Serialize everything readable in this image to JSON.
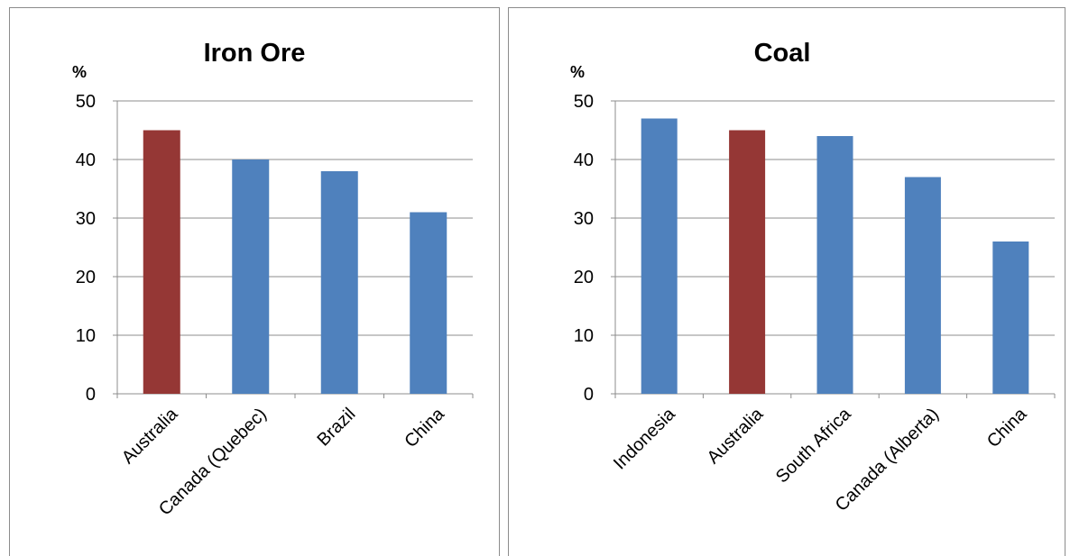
{
  "chart_data": [
    {
      "type": "bar",
      "title": "Iron Ore",
      "ylabel": "%",
      "ylim": [
        0,
        50
      ],
      "yticks": [
        0,
        10,
        20,
        30,
        40,
        50
      ],
      "grid": true,
      "categories": [
        "Australia",
        "Canada (Quebec)",
        "Brazil",
        "China"
      ],
      "values": [
        45,
        40,
        38,
        31
      ],
      "colors": [
        "#953735",
        "#4f81bd",
        "#4f81bd",
        "#4f81bd"
      ]
    },
    {
      "type": "bar",
      "title": "Coal",
      "ylabel": "%",
      "ylim": [
        0,
        50
      ],
      "yticks": [
        0,
        10,
        20,
        30,
        40,
        50
      ],
      "grid": true,
      "categories": [
        "Indonesia",
        "Australia",
        "South Africa",
        "Canada (Alberta)",
        "China"
      ],
      "values": [
        47,
        45,
        44,
        37,
        26
      ],
      "colors": [
        "#4f81bd",
        "#953735",
        "#4f81bd",
        "#4f81bd",
        "#4f81bd"
      ]
    }
  ]
}
